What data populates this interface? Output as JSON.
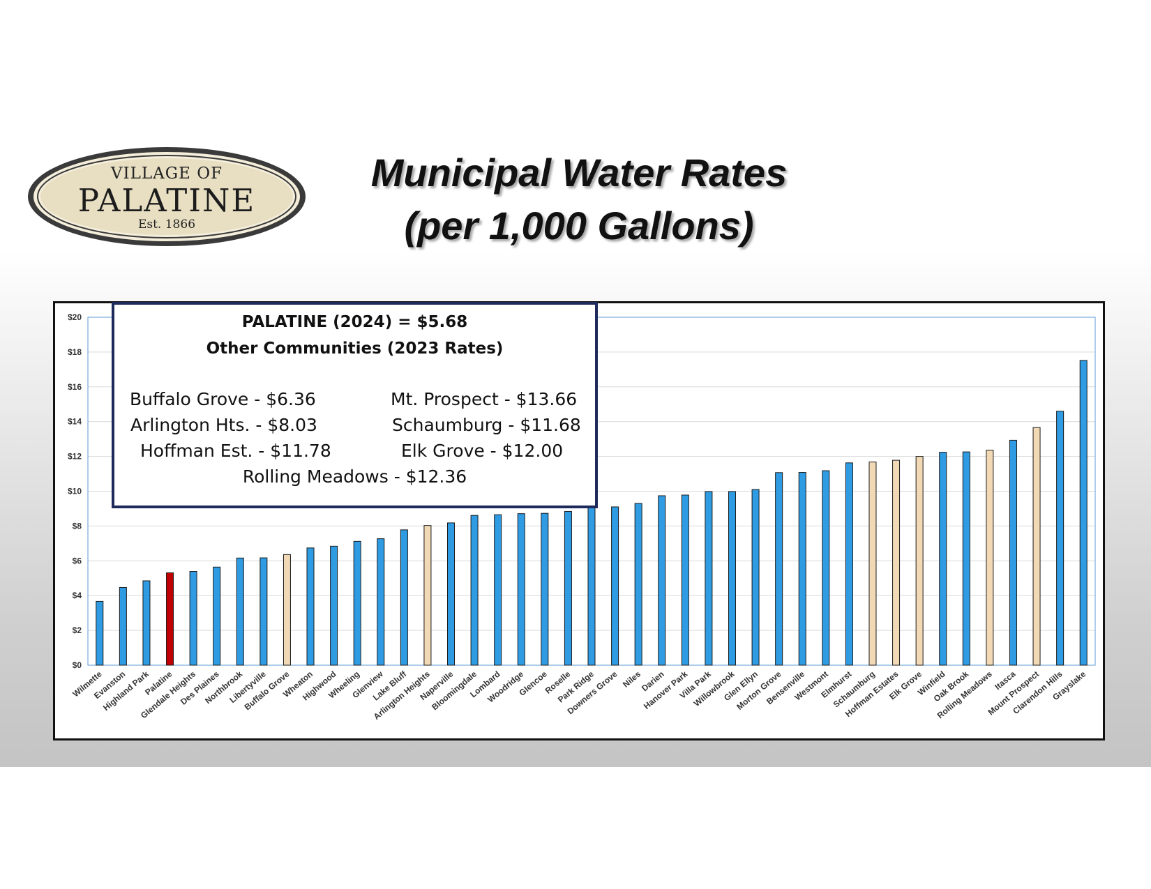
{
  "logo": {
    "line1": "VILLAGE OF",
    "line2": "PALATINE",
    "line3": "Est. 1866"
  },
  "title": {
    "line1": "Municipal Water Rates",
    "line2": "(per 1,000 Gallons)"
  },
  "callout": {
    "heading": "PALATINE (2024) = $5.68",
    "subheading": "Other Communities (2023 Rates)",
    "items": [
      "Buffalo Grove - $6.36",
      "Mt. Prospect - $13.66",
      "Arlington Hts. - $8.03",
      "Schaumburg - $11.68",
      "Hoffman Est. - $11.78",
      "Elk Grove - $12.00",
      "Rolling Meadows - $12.36"
    ]
  },
  "colors": {
    "default_bar": "#2e9be3",
    "palatine_bar": "#c00000",
    "highlight_bar": "#f1d9b5",
    "gridline": "#d9d9d9",
    "plot_border": "#5b9bd5"
  },
  "chart_data": {
    "type": "bar",
    "title": "",
    "xlabel": "",
    "ylabel": "",
    "ylim": [
      0,
      20
    ],
    "yticks": [
      "$0",
      "$2",
      "$4",
      "$6",
      "$8",
      "$10",
      "$12",
      "$14",
      "$16",
      "$18",
      "$20"
    ],
    "grid": true,
    "categories": [
      "Wilmette",
      "Evanston",
      "Highland Park",
      "Palatine",
      "Glendale Heights",
      "Des Plaines",
      "Northbrook",
      "Libertyville",
      "Buffalo Grove",
      "Wheaton",
      "Highwood",
      "Wheeling",
      "Glenview",
      "Lake Bluff",
      "Arlington Heights",
      "Naperville",
      "Bloomingdale",
      "Lombard",
      "Woodridge",
      "Glencoe",
      "Roselle",
      "Park Ridge",
      "Downers Grove",
      "Niles",
      "Darien",
      "Hanover Park",
      "Villa Park",
      "Willowbrook",
      "Glen Ellyn",
      "Morton Grove",
      "Bensenville",
      "Westmont",
      "Elmhurst",
      "Schaumburg",
      "Hoffman Estates",
      "Elk Grove",
      "Winfield",
      "Oak Brook",
      "Rolling Meadows",
      "Itasca",
      "Mount Prospect",
      "Clarendon Hills",
      "Grayslake"
    ],
    "values": [
      3.67,
      4.47,
      4.85,
      5.31,
      5.39,
      5.64,
      6.16,
      6.17,
      6.36,
      6.74,
      6.84,
      7.12,
      7.27,
      7.78,
      8.03,
      8.18,
      8.61,
      8.65,
      8.71,
      8.73,
      8.84,
      9.07,
      9.1,
      9.3,
      9.74,
      9.78,
      9.98,
      9.98,
      10.1,
      11.07,
      11.08,
      11.18,
      11.63,
      11.68,
      11.78,
      12.0,
      12.24,
      12.26,
      12.36,
      12.93,
      13.66,
      14.6,
      17.52
    ],
    "bar_colors": [
      "blue",
      "blue",
      "blue",
      "red",
      "blue",
      "blue",
      "blue",
      "blue",
      "tan",
      "blue",
      "blue",
      "blue",
      "blue",
      "blue",
      "tan",
      "blue",
      "blue",
      "blue",
      "blue",
      "blue",
      "blue",
      "blue",
      "blue",
      "blue",
      "blue",
      "blue",
      "blue",
      "blue",
      "blue",
      "blue",
      "blue",
      "blue",
      "blue",
      "tan",
      "tan",
      "tan",
      "blue",
      "blue",
      "tan",
      "blue",
      "tan",
      "blue",
      "blue"
    ]
  }
}
